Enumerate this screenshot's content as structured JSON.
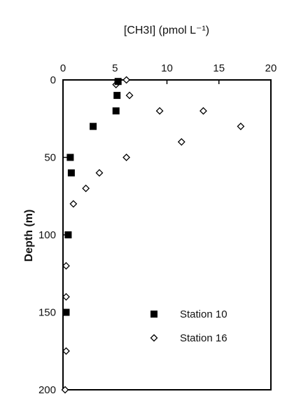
{
  "chart_data": {
    "type": "scatter",
    "title": "",
    "xlabel": "[CH3I] (pmol L⁻¹)",
    "ylabel": "Depth (m)",
    "xlim": [
      0,
      20
    ],
    "ylim": [
      0,
      200
    ],
    "y_inverted": true,
    "x_axis_position": "top",
    "x_ticks": [
      0,
      5,
      10,
      15,
      20
    ],
    "x_tick_labels": [
      "0",
      "5",
      "10",
      "15",
      "20"
    ],
    "y_ticks": [
      0,
      50,
      100,
      150,
      200
    ],
    "y_tick_labels": [
      "0",
      "50",
      "100",
      "150",
      "200"
    ],
    "grid": false,
    "legend_position": "bottom-right",
    "series": [
      {
        "name": "Station 10",
        "marker": "filled-square",
        "color": "#000000",
        "points": [
          {
            "x": 5.3,
            "y": 1
          },
          {
            "x": 5.2,
            "y": 10
          },
          {
            "x": 5.1,
            "y": 20
          },
          {
            "x": 2.9,
            "y": 30
          },
          {
            "x": 0.7,
            "y": 50
          },
          {
            "x": 0.8,
            "y": 60
          },
          {
            "x": 0.5,
            "y": 100
          },
          {
            "x": 0.3,
            "y": 150
          }
        ]
      },
      {
        "name": "Station 16",
        "marker": "open-diamond",
        "color": "#000000",
        "points": [
          {
            "x": 6.1,
            "y": 0
          },
          {
            "x": 5.1,
            "y": 3
          },
          {
            "x": 6.4,
            "y": 10
          },
          {
            "x": 9.3,
            "y": 20
          },
          {
            "x": 13.5,
            "y": 20
          },
          {
            "x": 17.1,
            "y": 30
          },
          {
            "x": 11.4,
            "y": 40
          },
          {
            "x": 6.1,
            "y": 50
          },
          {
            "x": 3.5,
            "y": 60
          },
          {
            "x": 2.2,
            "y": 70
          },
          {
            "x": 1.0,
            "y": 80
          },
          {
            "x": 0.3,
            "y": 120
          },
          {
            "x": 0.3,
            "y": 140
          },
          {
            "x": 0.3,
            "y": 175
          },
          {
            "x": 0.2,
            "y": 200
          }
        ]
      }
    ]
  }
}
